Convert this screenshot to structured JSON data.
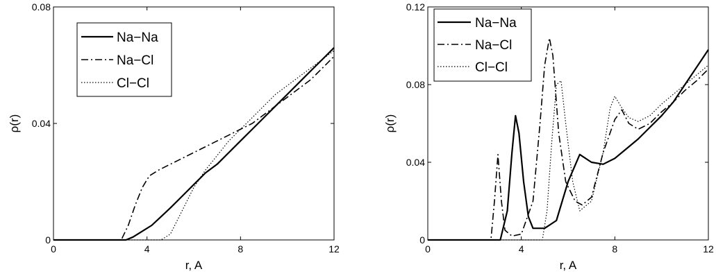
{
  "chart_data": [
    {
      "type": "line",
      "title": "",
      "xlabel": "r, A",
      "ylabel": "ρ(r)",
      "xlim": [
        0,
        12
      ],
      "ylim": [
        0,
        0.08
      ],
      "x_ticks": [
        "0",
        "4",
        "8",
        "12"
      ],
      "y_ticks": [
        "0",
        "0.04",
        "0.08"
      ],
      "grid": false,
      "legend_position": "top-left",
      "series": [
        {
          "name": "Na−Na",
          "style": "solid",
          "x": [
            0,
            3.1,
            3.4,
            3.8,
            4.2,
            4.6,
            5.0,
            5.5,
            6.0,
            6.5,
            7.0,
            7.5,
            8.0,
            8.5,
            9.0,
            9.5,
            10.0,
            10.5,
            11.0,
            11.5,
            12.0
          ],
          "y": [
            0,
            0,
            0.001,
            0.003,
            0.005,
            0.008,
            0.011,
            0.015,
            0.019,
            0.023,
            0.026,
            0.03,
            0.034,
            0.038,
            0.042,
            0.046,
            0.05,
            0.054,
            0.058,
            0.062,
            0.066
          ]
        },
        {
          "name": "Na−Cl",
          "style": "dashdot",
          "x": [
            0,
            2.9,
            3.2,
            3.5,
            3.8,
            4.1,
            4.5,
            5.0,
            5.5,
            6.0,
            6.5,
            7.0,
            7.5,
            8.0,
            8.5,
            9.0,
            9.5,
            10.0,
            10.5,
            11.0,
            11.5,
            12.0
          ],
          "y": [
            0,
            0,
            0.005,
            0.012,
            0.018,
            0.022,
            0.024,
            0.026,
            0.028,
            0.03,
            0.032,
            0.034,
            0.036,
            0.038,
            0.04,
            0.043,
            0.046,
            0.049,
            0.052,
            0.055,
            0.059,
            0.063
          ]
        },
        {
          "name": "Cl−Cl",
          "style": "dotted",
          "x": [
            0,
            4.6,
            5.0,
            5.5,
            6.0,
            6.5,
            7.0,
            7.5,
            8.0,
            8.5,
            9.0,
            9.5,
            10.0,
            10.5,
            11.0,
            11.5,
            12.0
          ],
          "y": [
            0,
            0,
            0.002,
            0.01,
            0.018,
            0.024,
            0.029,
            0.034,
            0.038,
            0.042,
            0.046,
            0.05,
            0.053,
            0.056,
            0.059,
            0.062,
            0.065
          ]
        }
      ]
    },
    {
      "type": "line",
      "title": "",
      "xlabel": "r, A",
      "ylabel": "ρ(r)",
      "xlim": [
        0,
        12
      ],
      "ylim": [
        0,
        0.12
      ],
      "x_ticks": [
        "0",
        "4",
        "8",
        "12"
      ],
      "y_ticks": [
        "0",
        "0.04",
        "0.08",
        "0.12"
      ],
      "grid": false,
      "legend_position": "top-left",
      "series": [
        {
          "name": "Na−Na",
          "style": "solid",
          "x": [
            0,
            3.1,
            3.4,
            3.6,
            3.75,
            3.9,
            4.1,
            4.3,
            4.5,
            5.0,
            5.5,
            6.0,
            6.5,
            7.0,
            7.5,
            8.0,
            8.5,
            9.0,
            9.5,
            10.0,
            10.5,
            11.0,
            11.5,
            12.0
          ],
          "y": [
            0,
            0,
            0.015,
            0.045,
            0.064,
            0.055,
            0.03,
            0.012,
            0.006,
            0.006,
            0.01,
            0.03,
            0.044,
            0.04,
            0.039,
            0.042,
            0.047,
            0.052,
            0.058,
            0.064,
            0.071,
            0.08,
            0.089,
            0.098
          ]
        },
        {
          "name": "Na−Cl",
          "style": "dashdot",
          "x": [
            0,
            2.7,
            2.85,
            3.0,
            3.15,
            3.3,
            3.6,
            4.0,
            4.5,
            4.8,
            5.0,
            5.2,
            5.35,
            5.6,
            5.9,
            6.3,
            6.6,
            7.0,
            7.5,
            8.0,
            8.3,
            8.6,
            9.0,
            9.5,
            10.0,
            10.5,
            11.0,
            11.5,
            12.0
          ],
          "y": [
            0,
            0,
            0.02,
            0.044,
            0.02,
            0.005,
            0.002,
            0.003,
            0.02,
            0.06,
            0.09,
            0.104,
            0.095,
            0.055,
            0.03,
            0.02,
            0.018,
            0.022,
            0.045,
            0.062,
            0.067,
            0.06,
            0.057,
            0.06,
            0.066,
            0.071,
            0.077,
            0.082,
            0.088
          ]
        },
        {
          "name": "Cl−Cl",
          "style": "dotted",
          "x": [
            0,
            4.9,
            5.1,
            5.3,
            5.5,
            5.7,
            5.9,
            6.2,
            6.5,
            7.0,
            7.5,
            7.8,
            8.0,
            8.3,
            8.6,
            9.0,
            9.5,
            10.0,
            10.5,
            11.0,
            11.5,
            12.0
          ],
          "y": [
            0,
            0,
            0.015,
            0.05,
            0.08,
            0.082,
            0.06,
            0.03,
            0.015,
            0.02,
            0.045,
            0.068,
            0.074,
            0.068,
            0.063,
            0.061,
            0.064,
            0.07,
            0.075,
            0.08,
            0.085,
            0.09
          ]
        }
      ]
    }
  ]
}
